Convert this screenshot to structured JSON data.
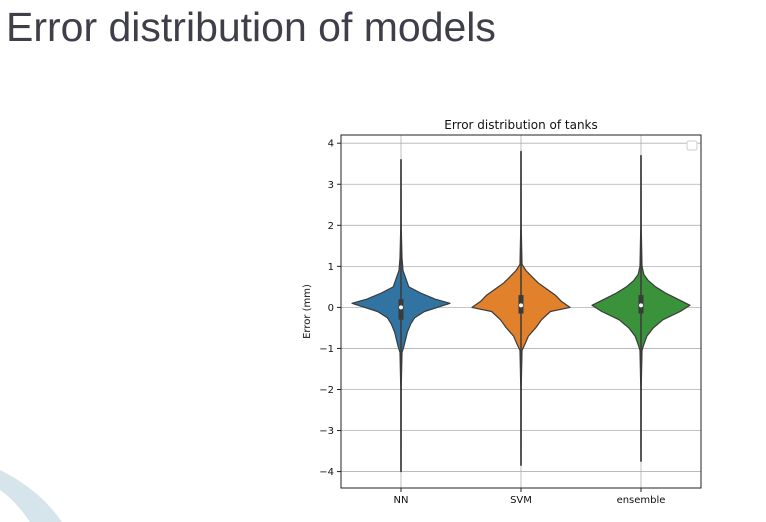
{
  "slide": {
    "title": "Error distribution of models"
  },
  "colors": {
    "title": "#3f3f4a",
    "grid": "#b0b0b0",
    "outline": "#3a3a3a",
    "deco": "#d6e4ec"
  },
  "chart_data": {
    "type": "violin",
    "title": "Error distribution of tanks",
    "xlabel": "",
    "ylabel": "Error (mm)",
    "ylim": [
      -4.4,
      4.2
    ],
    "yticks": [
      4,
      3,
      2,
      1,
      0,
      -1,
      -2,
      -3,
      -4
    ],
    "ytick_labels": [
      "4",
      "3",
      "2",
      "1",
      "0",
      "−1",
      "−2",
      "−3",
      "−4"
    ],
    "grid": true,
    "legend": "top-right (empty)",
    "categories": [
      "NN",
      "SVM",
      "ensemble"
    ],
    "series": [
      {
        "name": "NN",
        "color": "#3274a1",
        "min": -4.0,
        "max": 3.6,
        "q1": -0.3,
        "median": 0.0,
        "q3": 0.2,
        "profile": [
          [
            -4.0,
            0.003
          ],
          [
            -2.0,
            0.005
          ],
          [
            -1.1,
            0.02
          ],
          [
            -0.95,
            0.06
          ],
          [
            -0.8,
            0.09
          ],
          [
            -0.6,
            0.13
          ],
          [
            -0.4,
            0.2
          ],
          [
            -0.25,
            0.28
          ],
          [
            -0.1,
            0.48
          ],
          [
            0.1,
            1.0
          ],
          [
            0.2,
            0.7
          ],
          [
            0.35,
            0.4
          ],
          [
            0.5,
            0.16
          ],
          [
            0.7,
            0.1
          ],
          [
            0.9,
            0.04
          ],
          [
            1.2,
            0.02
          ],
          [
            2.0,
            0.005
          ],
          [
            3.6,
            0.003
          ]
        ]
      },
      {
        "name": "SVM",
        "color": "#e1812c",
        "min": -3.85,
        "max": 3.8,
        "q1": -0.15,
        "median": 0.05,
        "q3": 0.3,
        "profile": [
          [
            -3.85,
            0.003
          ],
          [
            -2.0,
            0.005
          ],
          [
            -1.05,
            0.02
          ],
          [
            -0.9,
            0.08
          ],
          [
            -0.7,
            0.15
          ],
          [
            -0.5,
            0.3
          ],
          [
            -0.3,
            0.42
          ],
          [
            -0.1,
            0.6
          ],
          [
            0.0,
            1.0
          ],
          [
            0.15,
            0.82
          ],
          [
            0.3,
            0.7
          ],
          [
            0.45,
            0.52
          ],
          [
            0.6,
            0.35
          ],
          [
            0.75,
            0.22
          ],
          [
            0.9,
            0.1
          ],
          [
            1.05,
            0.02
          ],
          [
            2.0,
            0.005
          ],
          [
            3.8,
            0.003
          ]
        ]
      },
      {
        "name": "ensemble",
        "color": "#3a923a",
        "min": -3.75,
        "max": 3.7,
        "q1": -0.15,
        "median": 0.05,
        "q3": 0.3,
        "profile": [
          [
            -3.75,
            0.003
          ],
          [
            -2.0,
            0.005
          ],
          [
            -1.05,
            0.02
          ],
          [
            -0.9,
            0.06
          ],
          [
            -0.7,
            0.12
          ],
          [
            -0.5,
            0.25
          ],
          [
            -0.3,
            0.45
          ],
          [
            -0.1,
            0.8
          ],
          [
            0.05,
            1.0
          ],
          [
            0.2,
            0.75
          ],
          [
            0.35,
            0.5
          ],
          [
            0.5,
            0.3
          ],
          [
            0.65,
            0.15
          ],
          [
            0.8,
            0.06
          ],
          [
            1.0,
            0.02
          ],
          [
            2.0,
            0.005
          ],
          [
            3.7,
            0.003
          ]
        ]
      }
    ]
  }
}
